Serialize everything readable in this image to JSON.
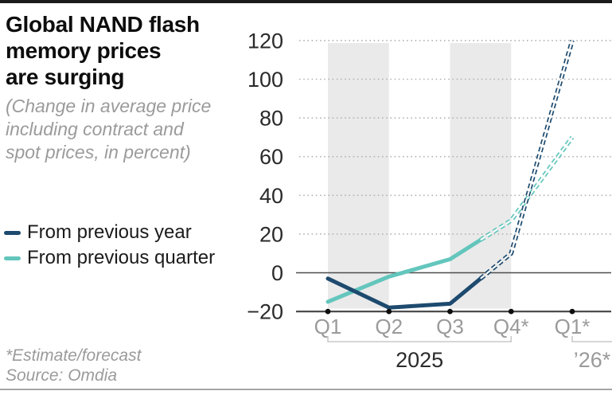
{
  "header": {
    "title_lines": [
      "Global NAND flash",
      "memory prices",
      "are surging"
    ],
    "subtitle_lines": [
      "(Change in average price",
      "including contract and",
      "spot prices, in percent)"
    ]
  },
  "legend": {
    "items": [
      {
        "label": "From previous year",
        "color": "#1d4a6e"
      },
      {
        "label": "From previous quarter",
        "color": "#63c6bd"
      }
    ]
  },
  "footnotes": {
    "lines": [
      "*Estimate/forecast",
      "Source: Omdia"
    ]
  },
  "chart_data": {
    "type": "line",
    "title": "Global NAND flash memory prices are surging",
    "subtitle": "(Change in average price including contract and spot prices, in percent)",
    "categories": [
      "Q1",
      "Q2",
      "Q3",
      "Q4*",
      "Q1*"
    ],
    "series": [
      {
        "name": "From previous year",
        "color": "#1d4a6e",
        "values": [
          -3,
          -18,
          -16,
          10,
          120
        ]
      },
      {
        "name": "From previous quarter",
        "color": "#63c6bd",
        "values": [
          -15,
          -2,
          7,
          27,
          70
        ]
      }
    ],
    "forecast_from_index": 3,
    "forecast_style": "open-chain-dash",
    "yticks": [
      120,
      100,
      80,
      60,
      40,
      20,
      0,
      -20
    ],
    "ylim": [
      -20,
      120
    ],
    "xlabel": "",
    "ylabel": "",
    "grid": "dotted horizontal, solid zero line, solid baseline at -20 with point markers",
    "shaded_band_pairs": [
      [
        0,
        1
      ],
      [
        2,
        3
      ]
    ],
    "x_group_labels": [
      {
        "label": "2025",
        "from": 0,
        "to": 3,
        "color": "#2b2b2b"
      },
      {
        "label": "’26*",
        "from": 4,
        "to": 4,
        "color": "#9a9a9a"
      }
    ],
    "legend_position": "left"
  },
  "colors": {
    "band": "#eaeaea",
    "grid_dots": "#b3b3b3",
    "axis": "#4d4d4d",
    "tick_label_gray": "#9a9a9a",
    "value_label_dark": "#2a2a2a",
    "marker_dot": "#0e0e0e",
    "bracket": "#c9c9c9"
  }
}
